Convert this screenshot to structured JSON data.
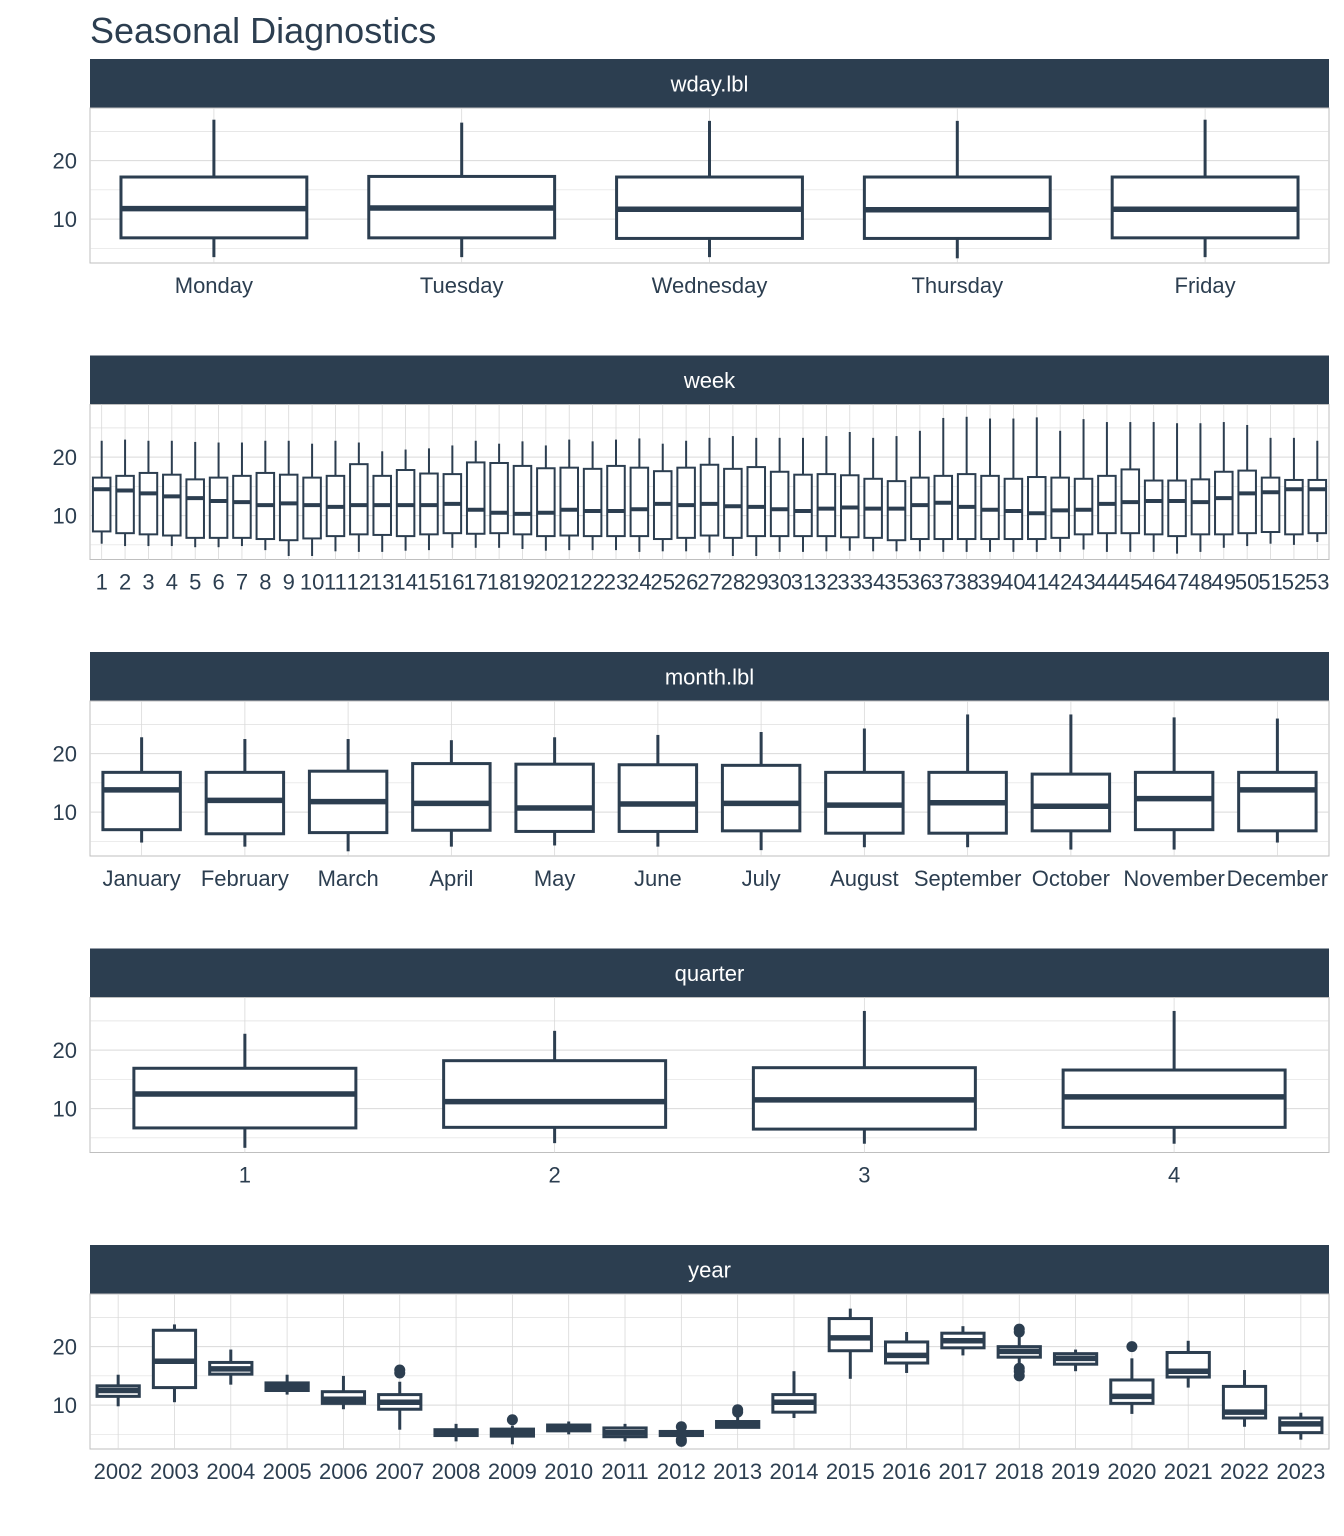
{
  "title": "Seasonal Diagnostics",
  "colors": {
    "strip": "#2c3e50",
    "strip_text": "#ffffff",
    "box": "#2c3e50",
    "grid": "#d9d9d9",
    "axis_text": "#2c3e50"
  },
  "chart_data": [
    {
      "type": "boxplot",
      "facet": "wday.lbl",
      "ylim": [
        2.5,
        29
      ],
      "yticks": [
        10,
        20
      ],
      "grid": true,
      "categories": [
        "Monday",
        "Tuesday",
        "Wednesday",
        "Thursday",
        "Friday"
      ],
      "boxes": [
        {
          "min": 3.5,
          "q1": 6.8,
          "median": 11.8,
          "q3": 17.2,
          "max": 27,
          "outliers": []
        },
        {
          "min": 3.5,
          "q1": 6.8,
          "median": 11.9,
          "q3": 17.3,
          "max": 26.5,
          "outliers": []
        },
        {
          "min": 3.5,
          "q1": 6.7,
          "median": 11.7,
          "q3": 17.2,
          "max": 26.8,
          "outliers": []
        },
        {
          "min": 3.3,
          "q1": 6.7,
          "median": 11.6,
          "q3": 17.2,
          "max": 26.8,
          "outliers": []
        },
        {
          "min": 3.5,
          "q1": 6.8,
          "median": 11.7,
          "q3": 17.2,
          "max": 27,
          "outliers": []
        }
      ]
    },
    {
      "type": "boxplot",
      "facet": "week",
      "ylim": [
        2.5,
        29
      ],
      "yticks": [
        10,
        20
      ],
      "grid": true,
      "categories": [
        "1",
        "2",
        "3",
        "4",
        "5",
        "6",
        "7",
        "8",
        "9",
        "10",
        "11",
        "12",
        "13",
        "14",
        "15",
        "16",
        "17",
        "18",
        "19",
        "20",
        "21",
        "22",
        "23",
        "24",
        "25",
        "26",
        "27",
        "28",
        "29",
        "30",
        "31",
        "32",
        "33",
        "34",
        "35",
        "36",
        "37",
        "38",
        "39",
        "40",
        "41",
        "42",
        "43",
        "44",
        "45",
        "46",
        "47",
        "48",
        "49",
        "50",
        "51",
        "52",
        "53"
      ],
      "boxes": [
        {
          "min": 5.2,
          "q1": 7.3,
          "median": 14.5,
          "q3": 16.5,
          "max": 22.8,
          "outliers": []
        },
        {
          "min": 4.8,
          "q1": 7.0,
          "median": 14.3,
          "q3": 16.8,
          "max": 23.0,
          "outliers": []
        },
        {
          "min": 4.8,
          "q1": 6.8,
          "median": 13.8,
          "q3": 17.3,
          "max": 22.8,
          "outliers": []
        },
        {
          "min": 4.8,
          "q1": 6.6,
          "median": 13.3,
          "q3": 17.0,
          "max": 22.8,
          "outliers": []
        },
        {
          "min": 4.6,
          "q1": 6.2,
          "median": 13.0,
          "q3": 16.2,
          "max": 22.6,
          "outliers": []
        },
        {
          "min": 4.6,
          "q1": 6.2,
          "median": 12.5,
          "q3": 16.5,
          "max": 22.5,
          "outliers": []
        },
        {
          "min": 4.8,
          "q1": 6.2,
          "median": 12.3,
          "q3": 16.8,
          "max": 22.5,
          "outliers": []
        },
        {
          "min": 4.1,
          "q1": 6.0,
          "median": 11.8,
          "q3": 17.3,
          "max": 22.8,
          "outliers": []
        },
        {
          "min": 3.1,
          "q1": 5.8,
          "median": 12.1,
          "q3": 17.0,
          "max": 22.8,
          "outliers": []
        },
        {
          "min": 3.1,
          "q1": 6.1,
          "median": 11.8,
          "q3": 16.5,
          "max": 22.3,
          "outliers": []
        },
        {
          "min": 3.9,
          "q1": 6.5,
          "median": 11.5,
          "q3": 16.8,
          "max": 22.8,
          "outliers": []
        },
        {
          "min": 3.8,
          "q1": 6.8,
          "median": 11.8,
          "q3": 18.8,
          "max": 22.5,
          "outliers": []
        },
        {
          "min": 3.8,
          "q1": 6.7,
          "median": 11.8,
          "q3": 16.8,
          "max": 21.0,
          "outliers": []
        },
        {
          "min": 4.0,
          "q1": 6.5,
          "median": 11.8,
          "q3": 17.8,
          "max": 21.3,
          "outliers": []
        },
        {
          "min": 4.1,
          "q1": 6.8,
          "median": 11.8,
          "q3": 17.2,
          "max": 21.5,
          "outliers": []
        },
        {
          "min": 4.5,
          "q1": 7.0,
          "median": 12.0,
          "q3": 17.1,
          "max": 22.0,
          "outliers": []
        },
        {
          "min": 4.5,
          "q1": 6.9,
          "median": 11.0,
          "q3": 19.1,
          "max": 22.8,
          "outliers": []
        },
        {
          "min": 4.5,
          "q1": 7.0,
          "median": 10.5,
          "q3": 19.0,
          "max": 22.3,
          "outliers": []
        },
        {
          "min": 4.3,
          "q1": 6.8,
          "median": 10.3,
          "q3": 18.5,
          "max": 22.7,
          "outliers": []
        },
        {
          "min": 4.0,
          "q1": 6.5,
          "median": 10.5,
          "q3": 18.1,
          "max": 22.0,
          "outliers": []
        },
        {
          "min": 4.1,
          "q1": 6.6,
          "median": 11.0,
          "q3": 18.2,
          "max": 23.0,
          "outliers": []
        },
        {
          "min": 4.1,
          "q1": 6.5,
          "median": 10.8,
          "q3": 18.0,
          "max": 22.7,
          "outliers": []
        },
        {
          "min": 4.1,
          "q1": 6.5,
          "median": 10.8,
          "q3": 18.5,
          "max": 23.0,
          "outliers": []
        },
        {
          "min": 3.8,
          "q1": 6.5,
          "median": 11.1,
          "q3": 18.2,
          "max": 23.2,
          "outliers": []
        },
        {
          "min": 3.9,
          "q1": 6.0,
          "median": 12.0,
          "q3": 17.6,
          "max": 22.3,
          "outliers": []
        },
        {
          "min": 3.9,
          "q1": 6.2,
          "median": 11.8,
          "q3": 18.2,
          "max": 22.8,
          "outliers": []
        },
        {
          "min": 3.7,
          "q1": 6.6,
          "median": 12.0,
          "q3": 18.7,
          "max": 23.3,
          "outliers": []
        },
        {
          "min": 3.1,
          "q1": 6.2,
          "median": 11.6,
          "q3": 18.0,
          "max": 23.6,
          "outliers": []
        },
        {
          "min": 3.1,
          "q1": 6.5,
          "median": 11.5,
          "q3": 18.3,
          "max": 23.3,
          "outliers": []
        },
        {
          "min": 3.8,
          "q1": 6.5,
          "median": 11.1,
          "q3": 17.5,
          "max": 23.3,
          "outliers": []
        },
        {
          "min": 3.8,
          "q1": 6.5,
          "median": 10.8,
          "q3": 17.0,
          "max": 23.3,
          "outliers": []
        },
        {
          "min": 3.9,
          "q1": 6.5,
          "median": 11.2,
          "q3": 17.1,
          "max": 23.6,
          "outliers": []
        },
        {
          "min": 4.0,
          "q1": 6.3,
          "median": 11.4,
          "q3": 16.9,
          "max": 24.3,
          "outliers": []
        },
        {
          "min": 3.9,
          "q1": 6.2,
          "median": 11.2,
          "q3": 16.3,
          "max": 23.3,
          "outliers": []
        },
        {
          "min": 3.9,
          "q1": 5.8,
          "median": 11.2,
          "q3": 15.9,
          "max": 23.6,
          "outliers": []
        },
        {
          "min": 3.9,
          "q1": 6.0,
          "median": 11.8,
          "q3": 16.5,
          "max": 24.5,
          "outliers": []
        },
        {
          "min": 3.8,
          "q1": 6.0,
          "median": 12.2,
          "q3": 16.8,
          "max": 26.7,
          "outliers": []
        },
        {
          "min": 3.8,
          "q1": 6.0,
          "median": 11.5,
          "q3": 17.1,
          "max": 26.9,
          "outliers": []
        },
        {
          "min": 3.8,
          "q1": 6.0,
          "median": 11.0,
          "q3": 16.8,
          "max": 26.6,
          "outliers": []
        },
        {
          "min": 3.8,
          "q1": 6.0,
          "median": 10.8,
          "q3": 16.3,
          "max": 26.6,
          "outliers": []
        },
        {
          "min": 3.8,
          "q1": 6.0,
          "median": 10.4,
          "q3": 16.6,
          "max": 26.8,
          "outliers": []
        },
        {
          "min": 3.8,
          "q1": 6.2,
          "median": 10.9,
          "q3": 16.5,
          "max": 24.5,
          "outliers": []
        },
        {
          "min": 4.2,
          "q1": 6.8,
          "median": 11.0,
          "q3": 16.3,
          "max": 26.5,
          "outliers": []
        },
        {
          "min": 3.8,
          "q1": 7.0,
          "median": 12.0,
          "q3": 16.8,
          "max": 26.0,
          "outliers": []
        },
        {
          "min": 3.8,
          "q1": 7.0,
          "median": 12.3,
          "q3": 17.9,
          "max": 26.0,
          "outliers": []
        },
        {
          "min": 3.8,
          "q1": 6.8,
          "median": 12.5,
          "q3": 16.0,
          "max": 26.0,
          "outliers": []
        },
        {
          "min": 3.5,
          "q1": 6.5,
          "median": 12.5,
          "q3": 16.0,
          "max": 25.8,
          "outliers": []
        },
        {
          "min": 3.8,
          "q1": 6.8,
          "median": 12.3,
          "q3": 16.2,
          "max": 25.8,
          "outliers": []
        },
        {
          "min": 4.5,
          "q1": 6.8,
          "median": 13.0,
          "q3": 17.5,
          "max": 26.0,
          "outliers": []
        },
        {
          "min": 4.8,
          "q1": 7.0,
          "median": 13.8,
          "q3": 17.7,
          "max": 25.5,
          "outliers": []
        },
        {
          "min": 5.2,
          "q1": 7.2,
          "median": 14.0,
          "q3": 16.5,
          "max": 23.3,
          "outliers": []
        },
        {
          "min": 5.0,
          "q1": 6.8,
          "median": 14.5,
          "q3": 16.1,
          "max": 23.3,
          "outliers": []
        },
        {
          "min": 5.5,
          "q1": 7.0,
          "median": 14.5,
          "q3": 16.1,
          "max": 22.8,
          "outliers": []
        }
      ]
    },
    {
      "type": "boxplot",
      "facet": "month.lbl",
      "ylim": [
        2.5,
        29
      ],
      "yticks": [
        10,
        20
      ],
      "grid": true,
      "categories": [
        "January",
        "February",
        "March",
        "April",
        "May",
        "June",
        "July",
        "August",
        "September",
        "October",
        "November",
        "December"
      ],
      "boxes": [
        {
          "min": 4.8,
          "q1": 7.0,
          "median": 13.8,
          "q3": 16.8,
          "max": 22.8,
          "outliers": []
        },
        {
          "min": 4.1,
          "q1": 6.3,
          "median": 12.0,
          "q3": 16.8,
          "max": 22.5,
          "outliers": []
        },
        {
          "min": 3.3,
          "q1": 6.5,
          "median": 11.8,
          "q3": 17.0,
          "max": 22.5,
          "outliers": []
        },
        {
          "min": 4.1,
          "q1": 6.9,
          "median": 11.5,
          "q3": 18.3,
          "max": 22.3,
          "outliers": []
        },
        {
          "min": 4.3,
          "q1": 6.7,
          "median": 10.7,
          "q3": 18.2,
          "max": 22.8,
          "outliers": []
        },
        {
          "min": 4.1,
          "q1": 6.7,
          "median": 11.4,
          "q3": 18.1,
          "max": 23.2,
          "outliers": []
        },
        {
          "min": 3.5,
          "q1": 6.8,
          "median": 11.5,
          "q3": 18.0,
          "max": 23.7,
          "outliers": []
        },
        {
          "min": 4.0,
          "q1": 6.4,
          "median": 11.2,
          "q3": 16.8,
          "max": 24.3,
          "outliers": []
        },
        {
          "min": 4.0,
          "q1": 6.4,
          "median": 11.6,
          "q3": 16.8,
          "max": 26.7,
          "outliers": []
        },
        {
          "min": 3.6,
          "q1": 6.8,
          "median": 11.0,
          "q3": 16.5,
          "max": 26.7,
          "outliers": []
        },
        {
          "min": 3.6,
          "q1": 7.0,
          "median": 12.3,
          "q3": 16.8,
          "max": 26.2,
          "outliers": []
        },
        {
          "min": 4.8,
          "q1": 6.8,
          "median": 13.8,
          "q3": 16.8,
          "max": 26.0,
          "outliers": []
        }
      ]
    },
    {
      "type": "boxplot",
      "facet": "quarter",
      "ylim": [
        2.5,
        29
      ],
      "yticks": [
        10,
        20
      ],
      "grid": true,
      "categories": [
        "1",
        "2",
        "3",
        "4"
      ],
      "boxes": [
        {
          "min": 3.3,
          "q1": 6.7,
          "median": 12.5,
          "q3": 16.9,
          "max": 22.8,
          "outliers": []
        },
        {
          "min": 4.1,
          "q1": 6.8,
          "median": 11.2,
          "q3": 18.2,
          "max": 23.3,
          "outliers": []
        },
        {
          "min": 4.0,
          "q1": 6.5,
          "median": 11.5,
          "q3": 17.0,
          "max": 26.7,
          "outliers": []
        },
        {
          "min": 4.0,
          "q1": 6.8,
          "median": 12.0,
          "q3": 16.6,
          "max": 26.7,
          "outliers": []
        }
      ]
    },
    {
      "type": "boxplot",
      "facet": "year",
      "ylim": [
        2.5,
        29
      ],
      "yticks": [
        10,
        20
      ],
      "grid": true,
      "categories": [
        "2002",
        "2003",
        "2004",
        "2005",
        "2006",
        "2007",
        "2008",
        "2009",
        "2010",
        "2011",
        "2012",
        "2013",
        "2014",
        "2015",
        "2016",
        "2017",
        "2018",
        "2019",
        "2020",
        "2021",
        "2022",
        "2023"
      ],
      "boxes": [
        {
          "min": 9.8,
          "q1": 11.5,
          "median": 12.5,
          "q3": 13.3,
          "max": 15.2,
          "outliers": []
        },
        {
          "min": 10.5,
          "q1": 13.0,
          "median": 17.5,
          "q3": 22.8,
          "max": 23.8,
          "outliers": []
        },
        {
          "min": 13.5,
          "q1": 15.3,
          "median": 16.2,
          "q3": 17.3,
          "max": 19.5,
          "outliers": []
        },
        {
          "min": 11.8,
          "q1": 12.5,
          "median": 13.2,
          "q3": 13.8,
          "max": 15.2,
          "outliers": []
        },
        {
          "min": 9.3,
          "q1": 10.3,
          "median": 11.0,
          "q3": 12.3,
          "max": 15.0,
          "outliers": []
        },
        {
          "min": 5.8,
          "q1": 9.3,
          "median": 10.5,
          "q3": 11.8,
          "max": 14.0,
          "outliers": [
            15.5,
            16.0
          ]
        },
        {
          "min": 3.8,
          "q1": 4.8,
          "median": 5.3,
          "q3": 5.8,
          "max": 6.8,
          "outliers": []
        },
        {
          "min": 3.3,
          "q1": 4.7,
          "median": 5.3,
          "q3": 5.9,
          "max": 6.5,
          "outliers": [
            7.5
          ]
        },
        {
          "min": 5.0,
          "q1": 5.6,
          "median": 6.0,
          "q3": 6.6,
          "max": 7.2,
          "outliers": []
        },
        {
          "min": 3.8,
          "q1": 4.6,
          "median": 5.3,
          "q3": 6.1,
          "max": 6.8,
          "outliers": []
        },
        {
          "min": 4.7,
          "q1": 4.8,
          "median": 5.1,
          "q3": 5.5,
          "max": 5.8,
          "outliers": [
            3.8,
            4.1,
            6.3
          ]
        },
        {
          "min": 6.0,
          "q1": 6.2,
          "median": 6.7,
          "q3": 7.2,
          "max": 8.0,
          "outliers": [
            8.8,
            9.2
          ]
        },
        {
          "min": 7.8,
          "q1": 8.8,
          "median": 10.5,
          "q3": 11.8,
          "max": 15.8,
          "outliers": []
        },
        {
          "min": 14.5,
          "q1": 19.3,
          "median": 21.5,
          "q3": 24.8,
          "max": 26.5,
          "outliers": []
        },
        {
          "min": 15.5,
          "q1": 17.2,
          "median": 18.5,
          "q3": 20.8,
          "max": 22.5,
          "outliers": []
        },
        {
          "min": 18.5,
          "q1": 19.8,
          "median": 21.0,
          "q3": 22.3,
          "max": 23.5,
          "outliers": []
        },
        {
          "min": 17.0,
          "q1": 18.2,
          "median": 19.2,
          "q3": 20.0,
          "max": 21.8,
          "outliers": [
            15.0,
            15.8,
            16.3,
            22.5,
            23.0
          ]
        },
        {
          "min": 15.8,
          "q1": 17.0,
          "median": 18.0,
          "q3": 18.8,
          "max": 19.5,
          "outliers": []
        },
        {
          "min": 8.5,
          "q1": 10.3,
          "median": 11.5,
          "q3": 14.3,
          "max": 18.0,
          "outliers": [
            20.0
          ]
        },
        {
          "min": 13.0,
          "q1": 14.8,
          "median": 15.8,
          "q3": 19.0,
          "max": 21.0,
          "outliers": []
        },
        {
          "min": 6.3,
          "q1": 7.8,
          "median": 8.8,
          "q3": 13.2,
          "max": 16.0,
          "outliers": []
        },
        {
          "min": 4.1,
          "q1": 5.3,
          "median": 6.8,
          "q3": 7.8,
          "max": 8.7,
          "outliers": []
        }
      ]
    }
  ]
}
